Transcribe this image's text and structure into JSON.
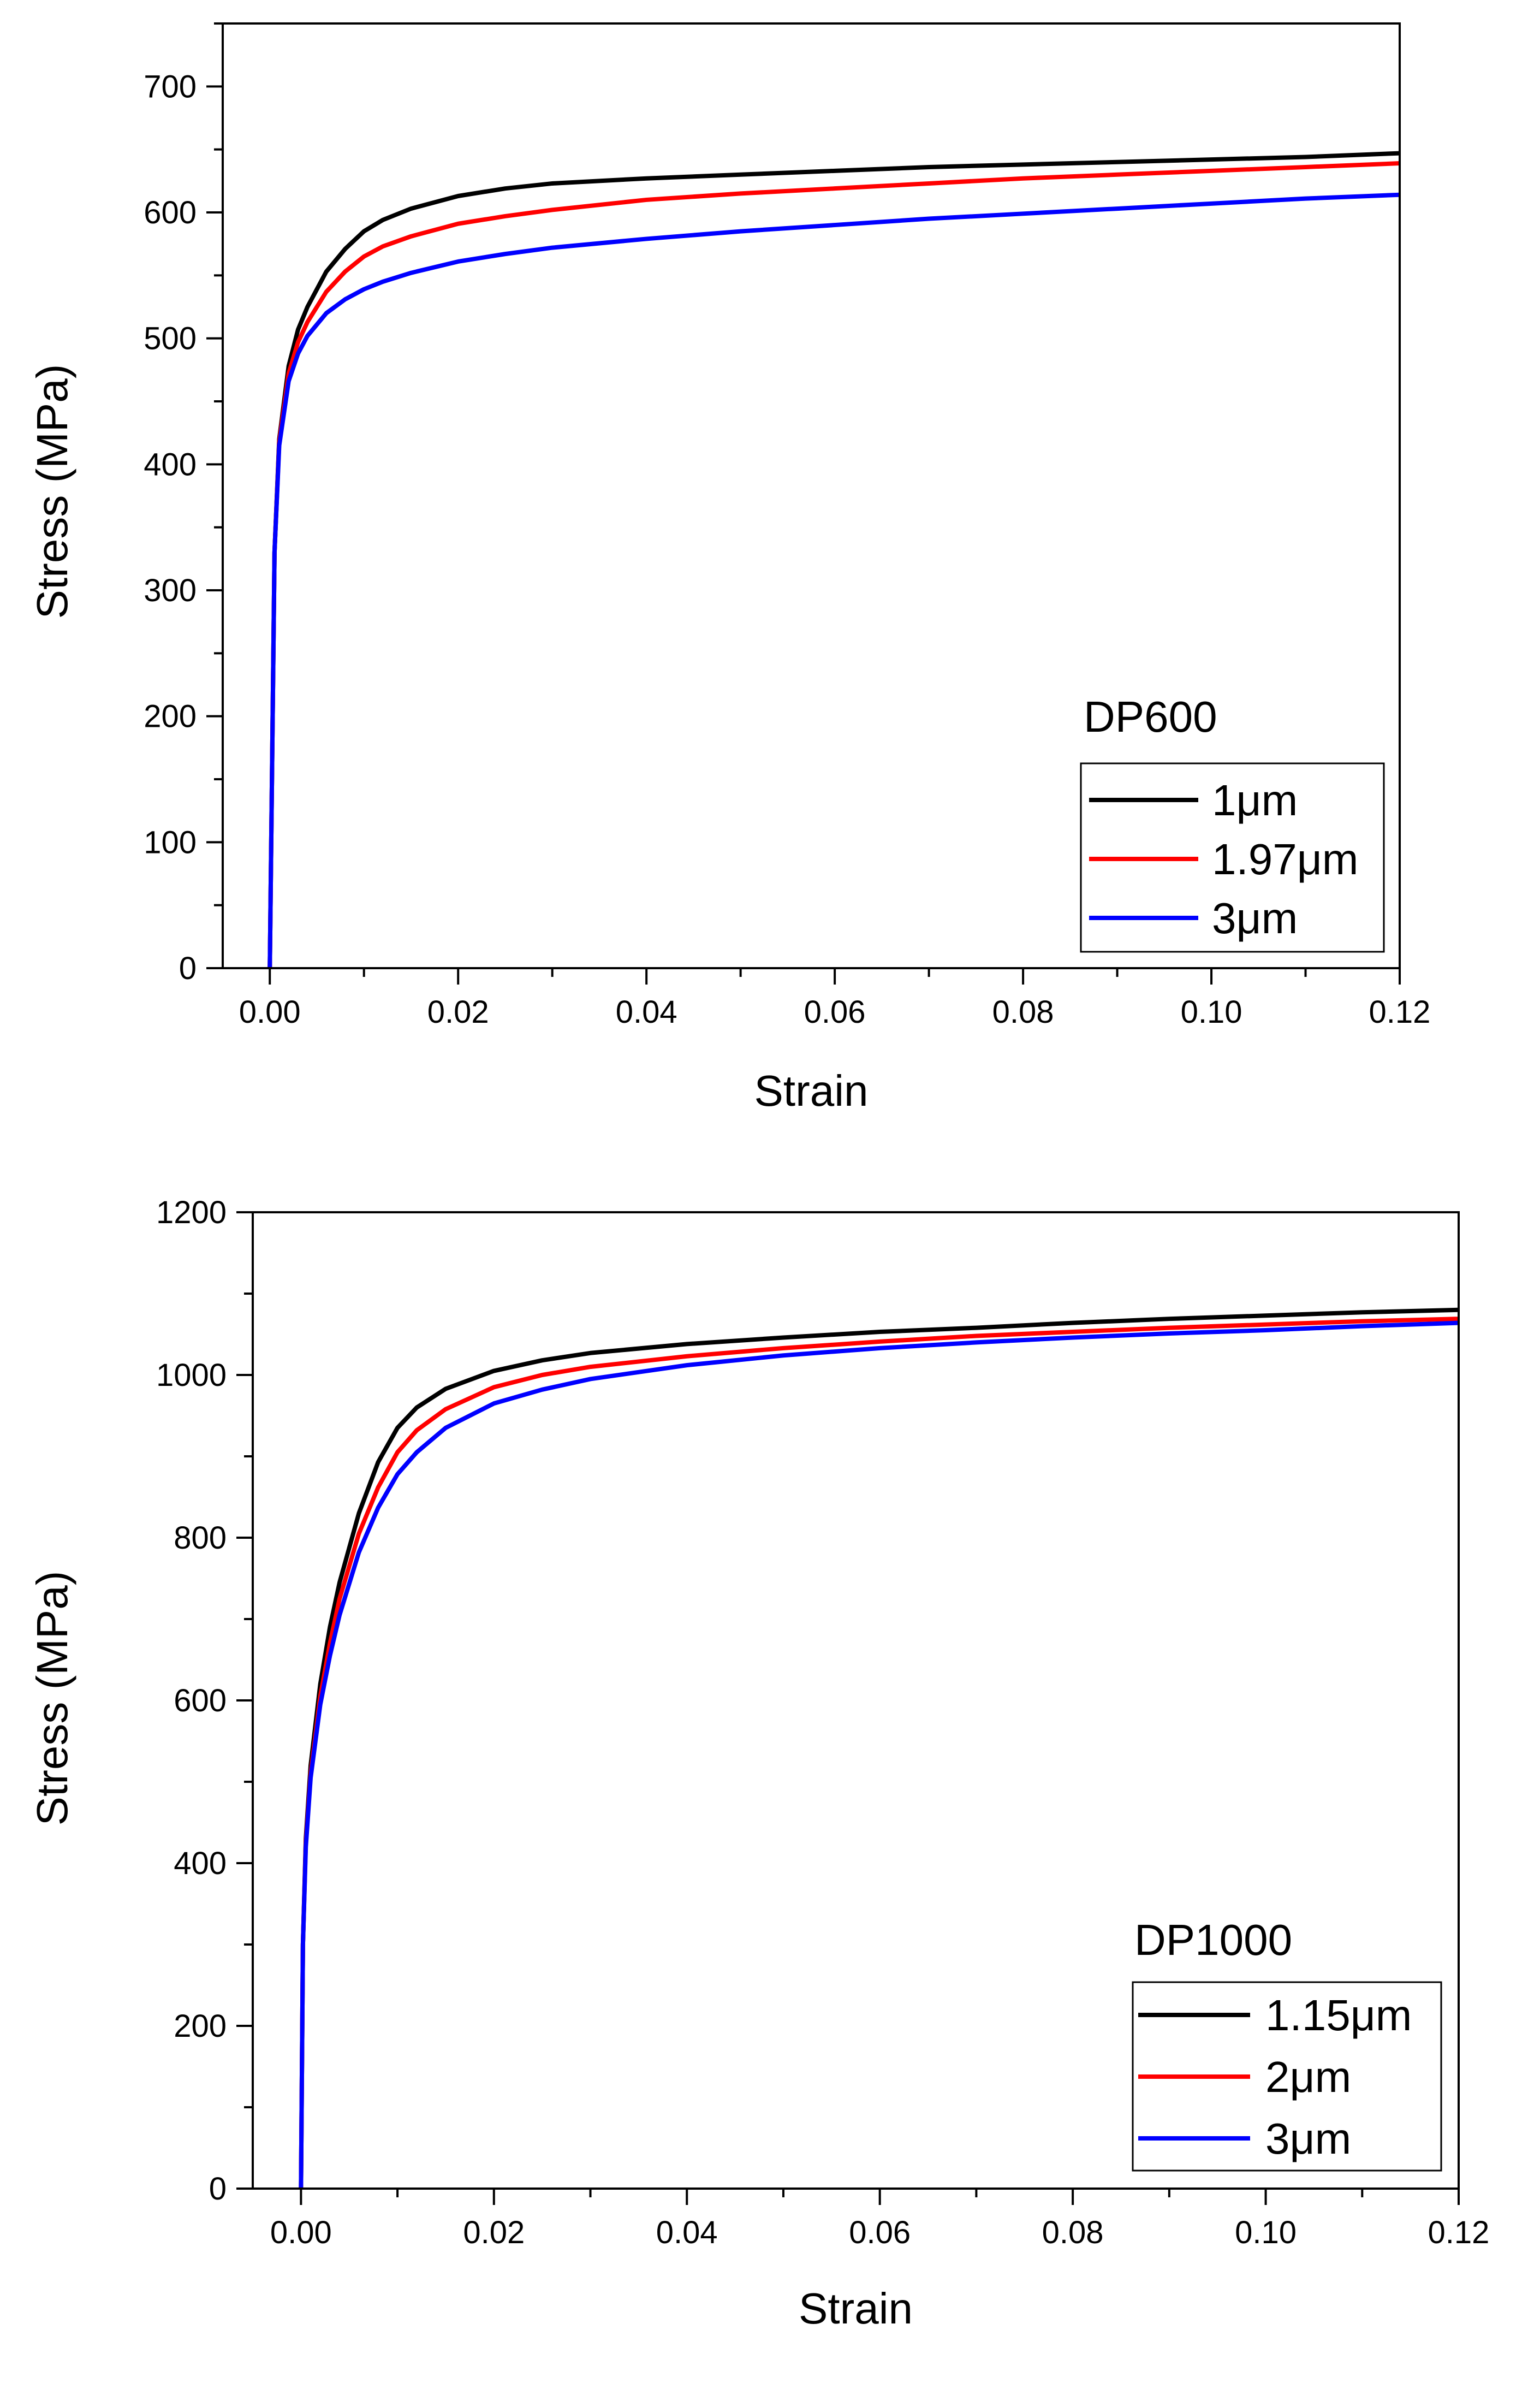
{
  "chart_data": [
    {
      "type": "line",
      "title": "",
      "xlabel": "Strain",
      "ylabel": "Stress (MPa)",
      "xlim": [
        -0.005,
        0.12
      ],
      "ylim": [
        0,
        750
      ],
      "x_ticks": [
        0.0,
        0.02,
        0.04,
        0.06,
        0.08,
        0.1,
        0.12
      ],
      "x_tick_labels": [
        "0.00",
        "0.02",
        "0.04",
        "0.06",
        "0.08",
        "0.10",
        "0.12"
      ],
      "y_ticks": [
        0,
        100,
        200,
        300,
        400,
        500,
        600,
        700
      ],
      "y_tick_labels": [
        "0",
        "100",
        "200",
        "300",
        "400",
        "500",
        "600",
        "700"
      ],
      "grid": false,
      "legend_title": "DP600",
      "legend_position": "bottom-right",
      "series": [
        {
          "name": "1μm",
          "color": "#000000",
          "x": [
            0,
            0.0005,
            0.001,
            0.002,
            0.003,
            0.004,
            0.006,
            0.008,
            0.01,
            0.012,
            0.015,
            0.02,
            0.025,
            0.03,
            0.04,
            0.05,
            0.06,
            0.07,
            0.08,
            0.09,
            0.1,
            0.11,
            0.12
          ],
          "y": [
            0,
            330,
            420,
            478,
            507,
            525,
            553,
            571,
            585,
            594,
            603,
            613,
            619,
            623,
            627,
            630,
            633,
            636,
            638,
            640,
            642,
            644,
            647
          ]
        },
        {
          "name": "1.97μm",
          "color": "#ff0000",
          "x": [
            0,
            0.0005,
            0.001,
            0.002,
            0.003,
            0.004,
            0.006,
            0.008,
            0.01,
            0.012,
            0.015,
            0.02,
            0.025,
            0.03,
            0.04,
            0.05,
            0.06,
            0.07,
            0.08,
            0.09,
            0.1,
            0.11,
            0.12
          ],
          "y": [
            0,
            330,
            418,
            472,
            497,
            513,
            537,
            553,
            565,
            573,
            581,
            591,
            597,
            602,
            610,
            615,
            619,
            623,
            627,
            630,
            633,
            636,
            639
          ]
        },
        {
          "name": "3μm",
          "color": "#0000ff",
          "x": [
            0,
            0.0005,
            0.001,
            0.002,
            0.003,
            0.004,
            0.006,
            0.008,
            0.01,
            0.012,
            0.015,
            0.02,
            0.025,
            0.03,
            0.04,
            0.05,
            0.06,
            0.07,
            0.08,
            0.09,
            0.1,
            0.11,
            0.12
          ],
          "y": [
            0,
            330,
            415,
            466,
            488,
            502,
            520,
            531,
            539,
            545,
            552,
            561,
            567,
            572,
            579,
            585,
            590,
            595,
            599,
            603,
            607,
            611,
            614
          ]
        }
      ]
    },
    {
      "type": "line",
      "title": "",
      "xlabel": "Strain",
      "ylabel": "Stress (MPa)",
      "xlim": [
        -0.005,
        0.12
      ],
      "ylim": [
        0,
        1200
      ],
      "x_ticks": [
        0.0,
        0.02,
        0.04,
        0.06,
        0.08,
        0.1,
        0.12
      ],
      "x_tick_labels": [
        "0.00",
        "0.02",
        "0.04",
        "0.06",
        "0.08",
        "0.10",
        "0.12"
      ],
      "y_ticks": [
        0,
        200,
        400,
        600,
        800,
        1000,
        1200
      ],
      "y_tick_labels": [
        "0",
        "200",
        "400",
        "600",
        "800",
        "1000",
        "1200"
      ],
      "grid": false,
      "legend_title": "DP1000",
      "legend_position": "bottom-right",
      "series": [
        {
          "name": "1.15μm",
          "color": "#000000",
          "x": [
            0,
            0.0002,
            0.0005,
            0.001,
            0.002,
            0.003,
            0.004,
            0.006,
            0.008,
            0.01,
            0.012,
            0.015,
            0.02,
            0.025,
            0.03,
            0.04,
            0.05,
            0.06,
            0.07,
            0.08,
            0.09,
            0.1,
            0.11,
            0.12
          ],
          "y": [
            0,
            300,
            430,
            520,
            620,
            690,
            745,
            830,
            893,
            935,
            960,
            983,
            1005,
            1018,
            1027,
            1038,
            1046,
            1053,
            1058,
            1064,
            1069,
            1073,
            1077,
            1080
          ]
        },
        {
          "name": "2μm",
          "color": "#ff0000",
          "x": [
            0,
            0.0002,
            0.0005,
            0.001,
            0.002,
            0.003,
            0.004,
            0.006,
            0.008,
            0.01,
            0.012,
            0.015,
            0.02,
            0.025,
            0.03,
            0.04,
            0.05,
            0.06,
            0.07,
            0.08,
            0.09,
            0.1,
            0.11,
            0.12
          ],
          "y": [
            0,
            300,
            425,
            510,
            605,
            670,
            725,
            805,
            862,
            905,
            932,
            958,
            985,
            1000,
            1010,
            1023,
            1033,
            1041,
            1048,
            1053,
            1058,
            1062,
            1066,
            1069
          ]
        },
        {
          "name": "3μm",
          "color": "#0000ff",
          "x": [
            0,
            0.0002,
            0.0005,
            0.001,
            0.002,
            0.003,
            0.004,
            0.006,
            0.008,
            0.01,
            0.012,
            0.015,
            0.02,
            0.025,
            0.03,
            0.04,
            0.05,
            0.06,
            0.07,
            0.08,
            0.09,
            0.1,
            0.11,
            0.12
          ],
          "y": [
            0,
            300,
            420,
            505,
            595,
            655,
            705,
            782,
            837,
            878,
            905,
            935,
            965,
            982,
            995,
            1012,
            1024,
            1033,
            1040,
            1046,
            1051,
            1055,
            1060,
            1064
          ]
        }
      ]
    }
  ]
}
